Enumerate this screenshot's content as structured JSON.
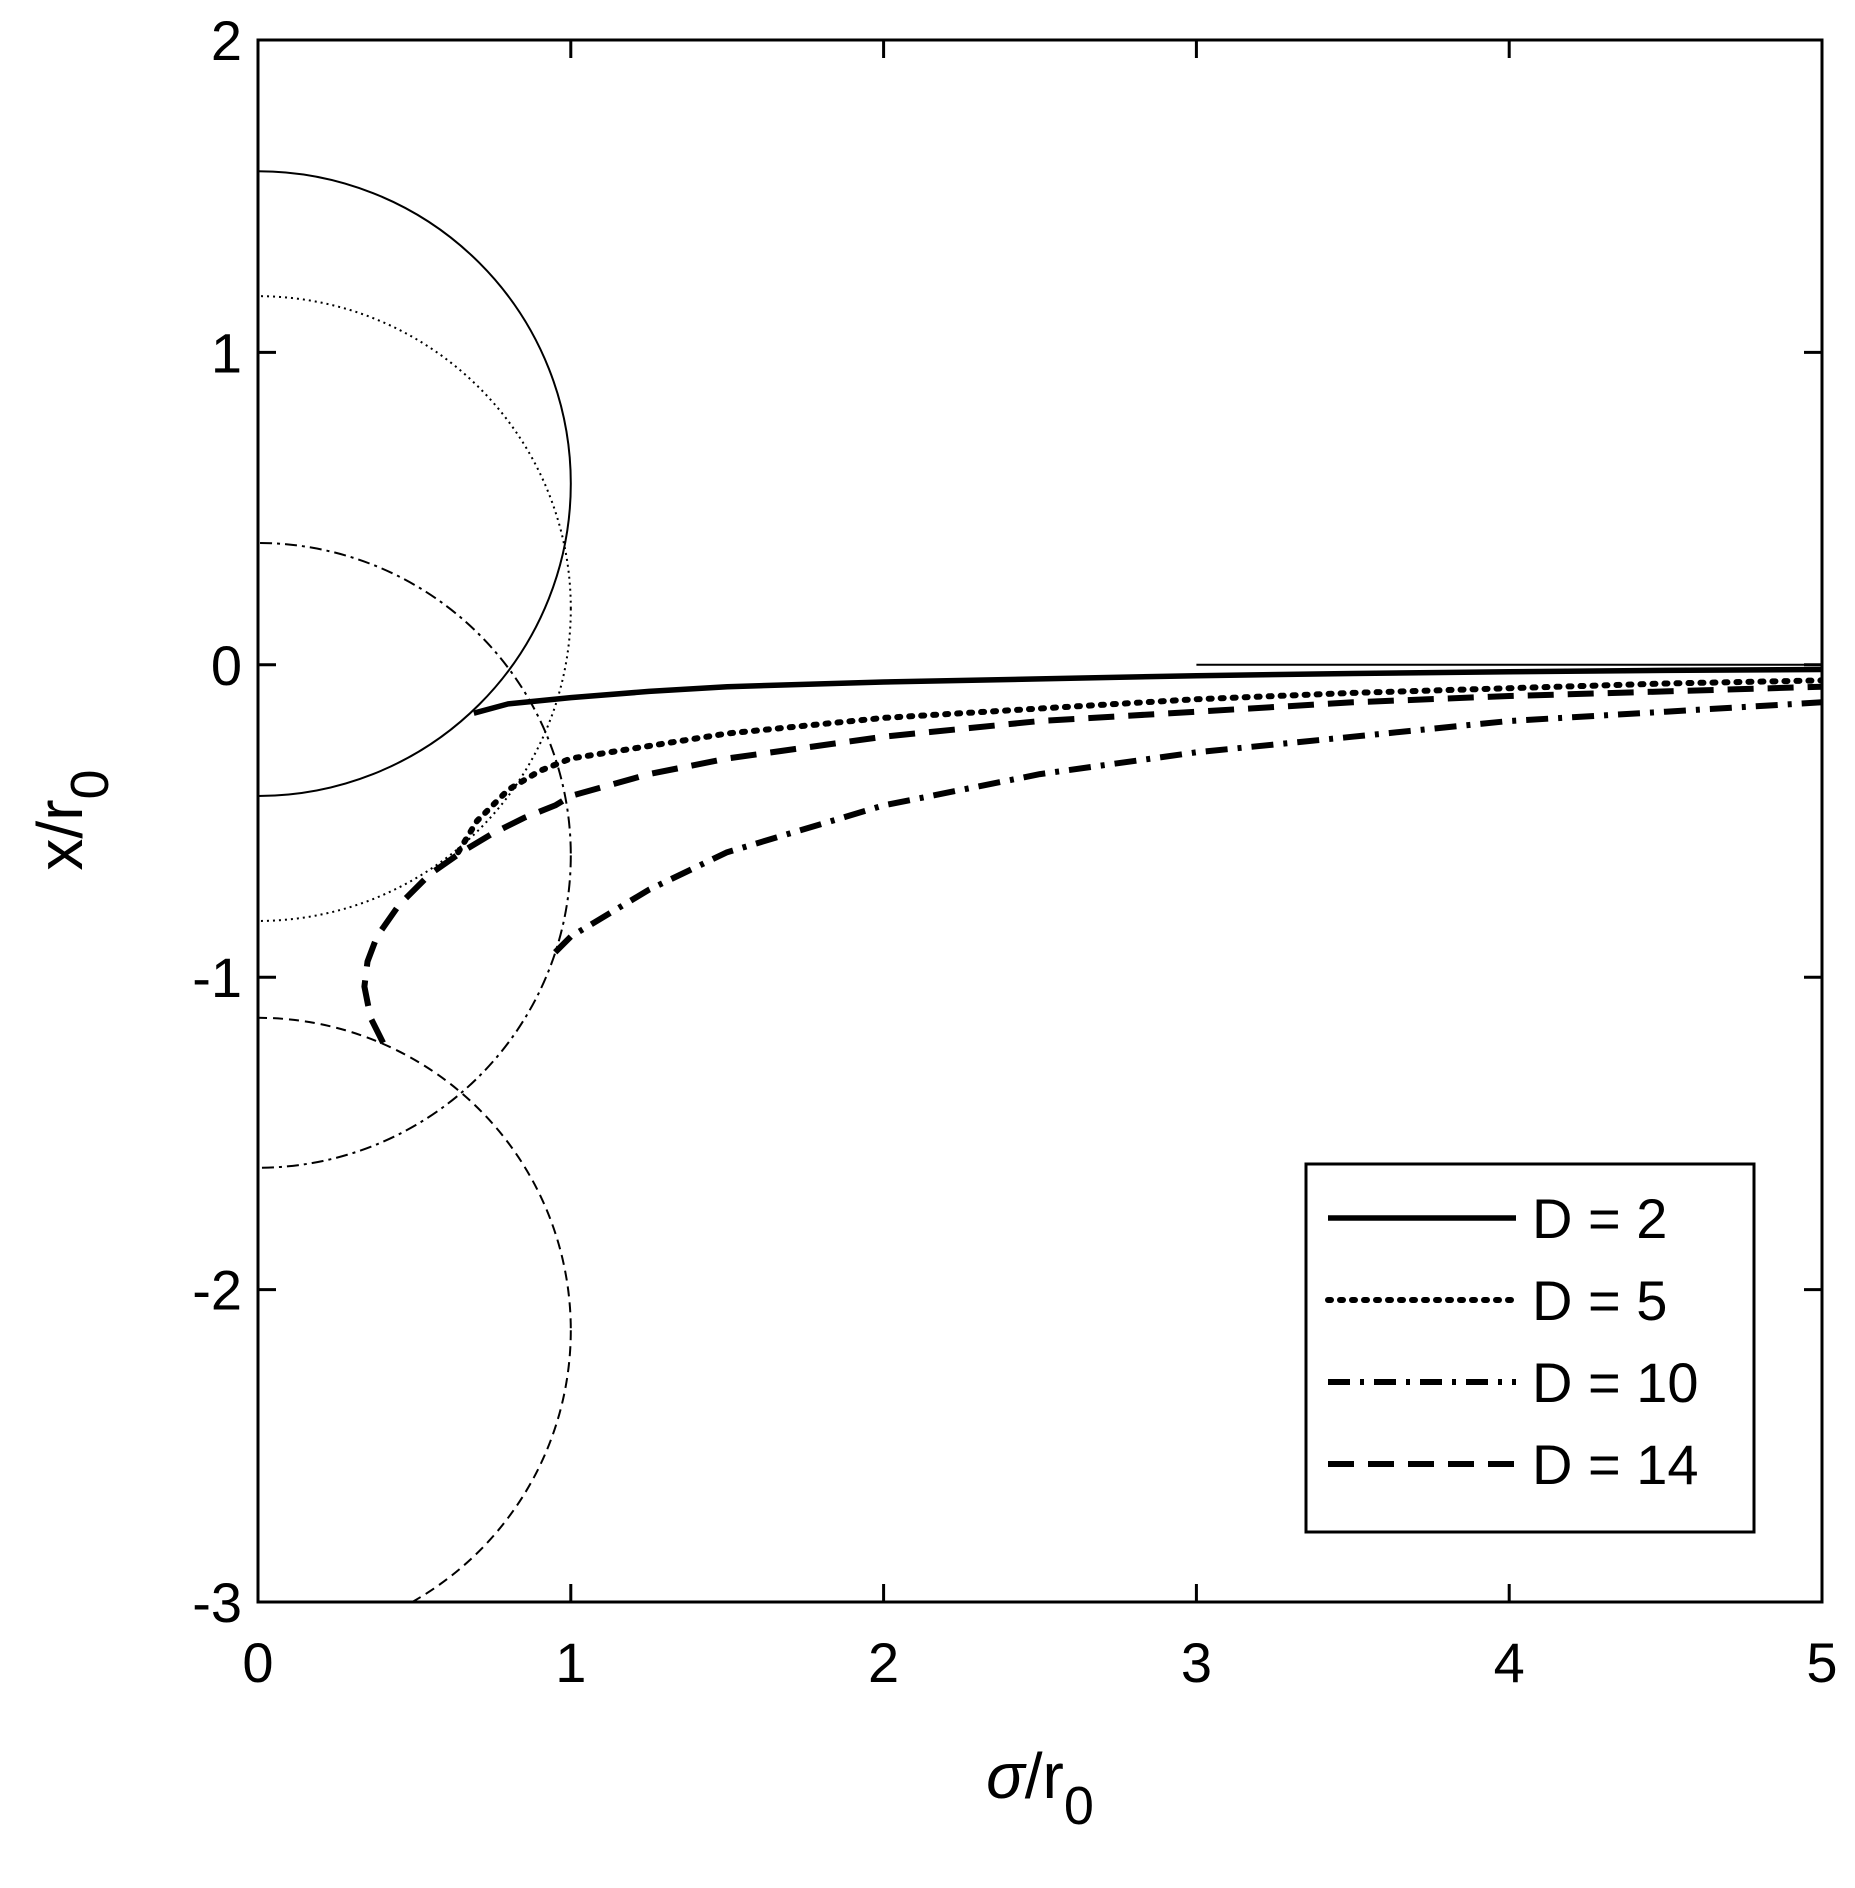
{
  "chart_data": {
    "type": "line",
    "title": "",
    "xlabel": "σ/r",
    "xlabel_sub": "0",
    "ylabel": "x/r",
    "ylabel_sub": "0",
    "xlim": [
      0,
      5
    ],
    "ylim": [
      -3,
      2
    ],
    "xticks": [
      0,
      1,
      2,
      3,
      4,
      5
    ],
    "yticks": [
      -3,
      -2,
      -1,
      0,
      1,
      2
    ],
    "xtick_labels": [
      "0",
      "1",
      "2",
      "3",
      "4",
      "5"
    ],
    "ytick_labels": [
      "-3",
      "-2",
      "-1",
      "0",
      "1",
      "2"
    ],
    "grid": false,
    "box": true,
    "legend_position": "bottom-right",
    "legend": [
      {
        "label": "D = 2",
        "style": "solid"
      },
      {
        "label": "D = 5",
        "style": "dotted"
      },
      {
        "label": "D = 10",
        "style": "dashdot"
      },
      {
        "label": "D = 14",
        "style": "dashed"
      }
    ],
    "series": [
      {
        "key": "D2",
        "style": "solid",
        "x": [
          0.69,
          0.8,
          1.0,
          1.25,
          1.5,
          2.0,
          2.5,
          3.0,
          3.5,
          4.0,
          4.5,
          5.0
        ],
        "y": [
          -0.155,
          -0.125,
          -0.105,
          -0.085,
          -0.07,
          -0.055,
          -0.045,
          -0.035,
          -0.028,
          -0.022,
          -0.018,
          -0.015
        ]
      },
      {
        "key": "D5",
        "style": "dotted",
        "x": [
          0.64,
          0.7,
          0.8,
          0.9,
          1.0,
          1.25,
          1.5,
          2.0,
          2.5,
          3.0,
          3.5,
          4.0,
          4.5,
          5.0
        ],
        "y": [
          -0.6,
          -0.5,
          -0.4,
          -0.34,
          -0.3,
          -0.26,
          -0.22,
          -0.17,
          -0.14,
          -0.11,
          -0.09,
          -0.075,
          -0.06,
          -0.05
        ]
      },
      {
        "key": "D10",
        "style": "dashdot",
        "x": [
          0.95,
          1.0,
          1.25,
          1.5,
          2.0,
          2.5,
          3.0,
          3.5,
          4.0,
          4.5,
          5.0
        ],
        "y": [
          -0.92,
          -0.87,
          -0.72,
          -0.6,
          -0.45,
          -0.35,
          -0.28,
          -0.23,
          -0.18,
          -0.15,
          -0.12
        ]
      },
      {
        "key": "D14",
        "style": "dashed",
        "x": [
          0.4,
          0.36,
          0.34,
          0.35,
          0.38,
          0.45,
          0.55,
          0.65,
          0.75,
          0.85,
          0.95,
          1.0,
          1.25,
          1.5,
          2.0,
          2.5,
          3.0,
          3.5,
          4.0,
          4.5,
          5.0
        ],
        "y": [
          -1.21,
          -1.13,
          -1.03,
          -0.95,
          -0.87,
          -0.77,
          -0.67,
          -0.6,
          -0.54,
          -0.49,
          -0.45,
          -0.42,
          -0.35,
          -0.3,
          -0.23,
          -0.18,
          -0.15,
          -0.12,
          -0.1,
          -0.085,
          -0.07
        ]
      }
    ],
    "circles": [
      {
        "key": "D2",
        "style": "solid",
        "center": [
          0,
          0.58
        ],
        "radius": 1.0
      },
      {
        "key": "D5",
        "style": "dotted",
        "center": [
          0,
          0.18
        ],
        "radius": 1.0
      },
      {
        "key": "D10",
        "style": "dashdot",
        "center": [
          0,
          -0.61
        ],
        "radius": 1.0
      },
      {
        "key": "D14",
        "style": "dashed",
        "center": [
          0,
          -2.13
        ],
        "radius": 1.0
      }
    ],
    "reference_line": {
      "x": [
        3.0,
        5.0
      ],
      "y": [
        0.0,
        0.0
      ]
    }
  }
}
